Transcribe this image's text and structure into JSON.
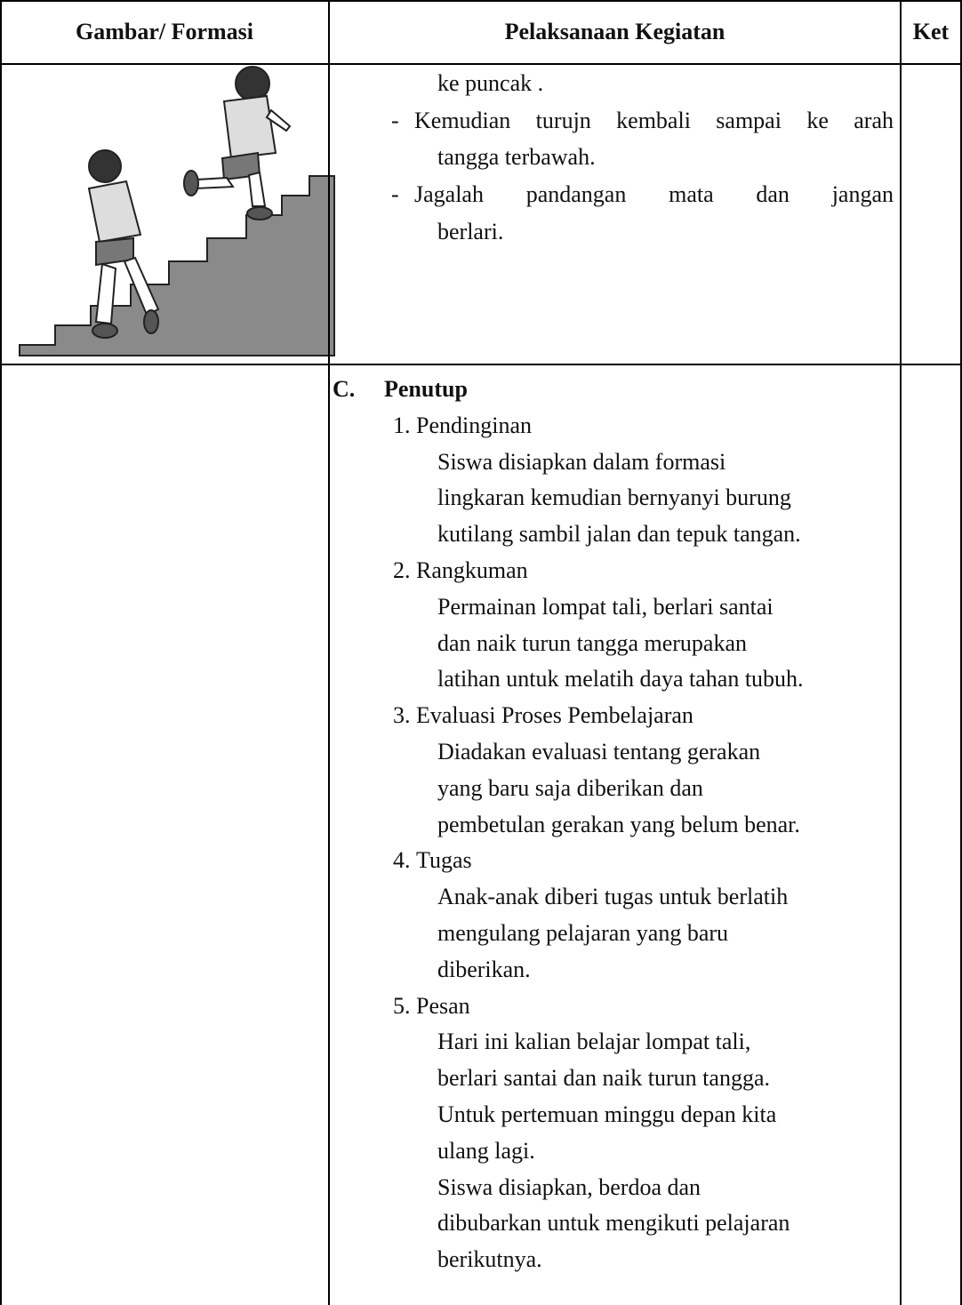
{
  "header": {
    "columns": [
      "Gambar/ Formasi",
      "Pelaksanaan Kegiatan",
      "Ket"
    ]
  },
  "rows": [
    {
      "continuation": "ke puncak .",
      "bullets": [
        {
          "marker": "-",
          "lines": [
            "Kemudian turujn kembali sampai ke arah",
            "tangga terbawah."
          ]
        },
        {
          "marker": "-",
          "lines": [
            "Jagalah pandangan mata dan jangan",
            "berlari."
          ]
        }
      ]
    },
    {
      "section": {
        "marker": "C.",
        "title": "Penutup",
        "items": [
          {
            "number": "1.",
            "title": "Pendinginan",
            "lines": [
              "Siswa disiapkan dalam formasi",
              "lingkaran kemudian bernyanyi burung",
              "kutilang sambil jalan dan tepuk tangan."
            ]
          },
          {
            "number": "2.",
            "title": "Rangkuman",
            "lines": [
              "Permainan lompat tali, berlari santai",
              "dan naik turun tangga merupakan",
              "latihan untuk melatih daya tahan tubuh."
            ]
          },
          {
            "number": "3.",
            "title": "Evaluasi Proses Pembelajaran",
            "lines": [
              "Diadakan evaluasi tentang gerakan",
              "yang baru saja diberikan dan",
              "pembetulan gerakan yang belum benar."
            ]
          },
          {
            "number": "4.",
            "title": "Tugas",
            "lines": [
              "Anak-anak diberi tugas untuk berlatih",
              "mengulang pelajaran yang baru",
              "diberikan."
            ]
          },
          {
            "number": "5.",
            "title": "Pesan",
            "lines": [
              "Hari ini kalian belajar lompat tali,",
              "berlari santai dan naik turun tangga.",
              "Untuk pertemuan minggu depan kita",
              "ulang lagi.",
              "Siswa disiapkan, berdoa dan",
              "dibubarkan untuk mengikuti pelajaran",
              "berikutnya."
            ]
          }
        ]
      }
    }
  ]
}
